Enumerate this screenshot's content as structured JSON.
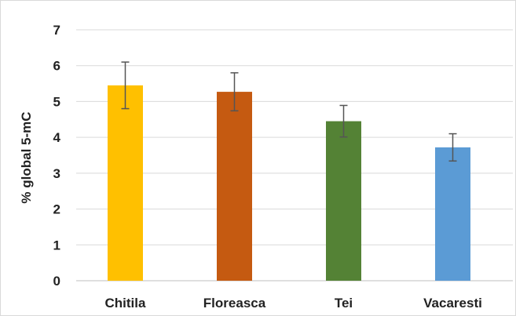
{
  "chart_data": {
    "type": "bar",
    "title": "",
    "xlabel": "",
    "ylabel": "% global 5-mC",
    "categories": [
      "Chitila",
      "Floreasca",
      "Tei",
      "Vacaresti"
    ],
    "values": [
      5.45,
      5.27,
      4.45,
      3.72
    ],
    "errors": [
      0.65,
      0.53,
      0.44,
      0.38
    ],
    "colors": [
      "#ffc000",
      "#c55a11",
      "#548235",
      "#5b9bd5"
    ],
    "ylim": [
      0,
      7
    ],
    "yticks": [
      "0",
      "1",
      "2",
      "3",
      "4",
      "5",
      "6",
      "7"
    ],
    "grid": true,
    "legend": "none"
  }
}
